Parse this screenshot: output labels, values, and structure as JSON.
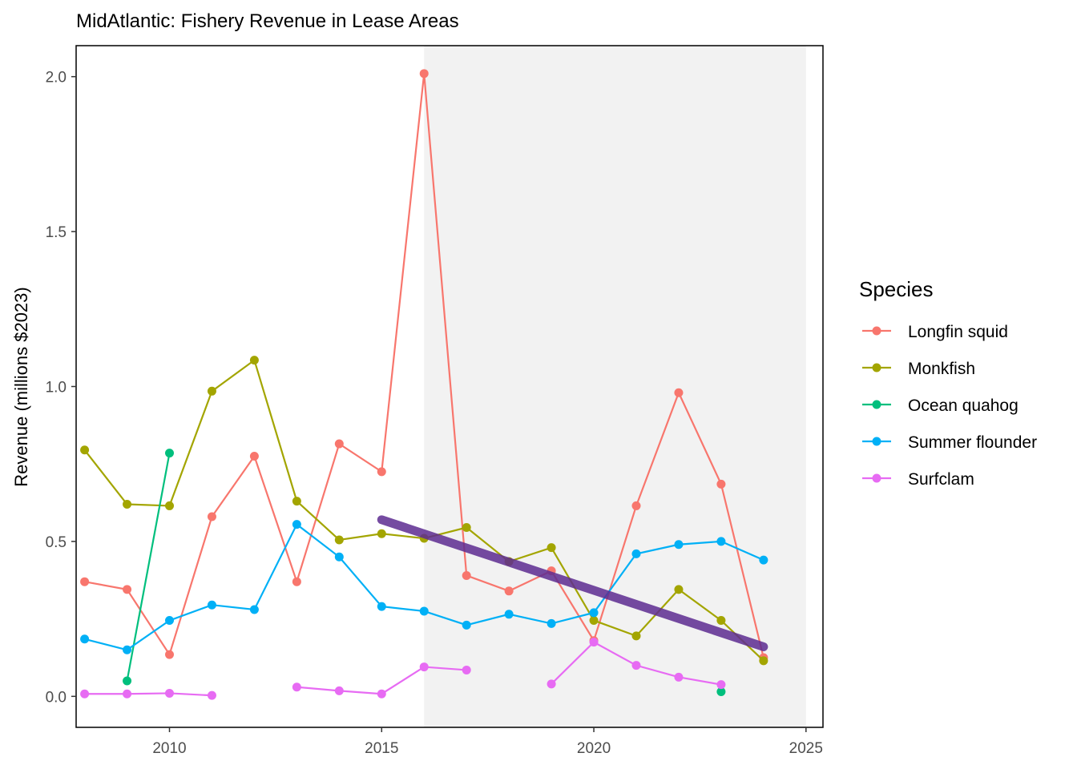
{
  "chart_data": {
    "type": "line",
    "title": "MidAtlantic: Fishery Revenue in Lease Areas",
    "xlabel": "",
    "ylabel": "Revenue (millions $2023)",
    "xlim": [
      2007.8,
      2025.4
    ],
    "ylim": [
      -0.1,
      2.1
    ],
    "x_ticks": [
      2010,
      2015,
      2020,
      2025
    ],
    "y_ticks": [
      0.0,
      0.5,
      1.0,
      1.5,
      2.0
    ],
    "x_tick_labels": [
      "2010",
      "2015",
      "2020",
      "2025"
    ],
    "y_tick_labels": [
      "0.0",
      "0.5",
      "1.0",
      "1.5",
      "2.0"
    ],
    "grid": false,
    "shaded_region": {
      "x": [
        2016,
        2025
      ],
      "color": "#f2f2f2"
    },
    "legend": {
      "title": "Species",
      "position": "right"
    },
    "series": [
      {
        "name": "Longfin squid",
        "color": "#f8766d",
        "points": [
          [
            2008,
            0.37
          ],
          [
            2009,
            0.345
          ],
          [
            2010,
            0.135
          ],
          [
            2011,
            0.58
          ],
          [
            2012,
            0.775
          ],
          [
            2013,
            0.37
          ],
          [
            2014,
            0.815
          ],
          [
            2015,
            0.725
          ],
          [
            2016,
            2.01
          ],
          [
            2017,
            0.39
          ],
          [
            2018,
            0.34
          ],
          [
            2019,
            0.405
          ],
          [
            2020,
            0.18
          ],
          [
            2021,
            0.615
          ],
          [
            2022,
            0.98
          ],
          [
            2023,
            0.685
          ],
          [
            2024,
            0.125
          ]
        ]
      },
      {
        "name": "Monkfish",
        "color": "#a3a500",
        "points": [
          [
            2008,
            0.795
          ],
          [
            2009,
            0.62
          ],
          [
            2010,
            0.615
          ],
          [
            2011,
            0.985
          ],
          [
            2012,
            1.085
          ],
          [
            2013,
            0.63
          ],
          [
            2014,
            0.505
          ],
          [
            2015,
            0.525
          ],
          [
            2016,
            0.51
          ],
          [
            2017,
            0.545
          ],
          [
            2018,
            0.435
          ],
          [
            2019,
            0.48
          ],
          [
            2020,
            0.245
          ],
          [
            2021,
            0.195
          ],
          [
            2022,
            0.345
          ],
          [
            2023,
            0.245
          ],
          [
            2024,
            0.115
          ]
        ]
      },
      {
        "name": "Ocean quahog",
        "color": "#00bf7d",
        "points": [
          [
            2009,
            0.05
          ],
          [
            2010,
            0.785
          ]
        ],
        "extra_points": [
          [
            2023,
            0.015
          ]
        ]
      },
      {
        "name": "Summer flounder",
        "color": "#00b0f6",
        "points": [
          [
            2008,
            0.185
          ],
          [
            2009,
            0.15
          ],
          [
            2010,
            0.245
          ],
          [
            2011,
            0.295
          ],
          [
            2012,
            0.28
          ],
          [
            2013,
            0.555
          ],
          [
            2014,
            0.45
          ],
          [
            2015,
            0.29
          ],
          [
            2016,
            0.275
          ],
          [
            2017,
            0.23
          ],
          [
            2018,
            0.265
          ],
          [
            2019,
            0.235
          ],
          [
            2020,
            0.27
          ],
          [
            2021,
            0.46
          ],
          [
            2022,
            0.49
          ],
          [
            2023,
            0.5
          ],
          [
            2024,
            0.44
          ]
        ]
      },
      {
        "name": "Surfclam",
        "color": "#e76bf3",
        "segments": [
          [
            [
              2008,
              0.008
            ],
            [
              2009,
              0.008
            ],
            [
              2010,
              0.01
            ],
            [
              2011,
              0.003
            ]
          ],
          [
            [
              2013,
              0.03
            ],
            [
              2014,
              0.018
            ],
            [
              2015,
              0.008
            ],
            [
              2016,
              0.095
            ],
            [
              2017,
              0.085
            ]
          ],
          [
            [
              2019,
              0.04
            ],
            [
              2020,
              0.175
            ],
            [
              2021,
              0.1
            ],
            [
              2022,
              0.062
            ],
            [
              2023,
              0.038
            ]
          ]
        ]
      }
    ],
    "trend_line": {
      "color": "#5e2c91",
      "points": [
        [
          2015,
          0.57
        ],
        [
          2024,
          0.16
        ]
      ]
    }
  }
}
